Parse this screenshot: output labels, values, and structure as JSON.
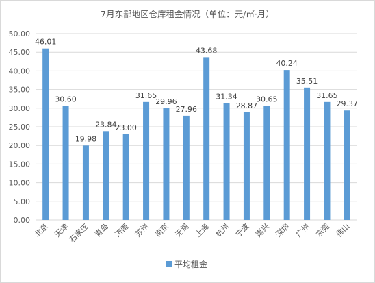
{
  "chart_data": {
    "type": "bar",
    "title": "7月东部地区仓库租金情况（单位：元/㎡·月）",
    "xlabel": "",
    "ylabel": "",
    "categories": [
      "北京",
      "天津",
      "石家庄",
      "青岛",
      "济南",
      "苏州",
      "南京",
      "无锡",
      "上海",
      "杭州",
      "宁波",
      "嘉兴",
      "深圳",
      "广州",
      "东莞",
      "佛山"
    ],
    "series": [
      {
        "name": "平均租金",
        "values": [
          46.01,
          30.6,
          19.98,
          23.84,
          23.0,
          31.65,
          29.96,
          27.96,
          43.68,
          31.34,
          28.87,
          30.65,
          40.24,
          35.51,
          31.65,
          29.37
        ],
        "labels": [
          "46.01",
          "30.60",
          "19.98",
          "23.84",
          "23.00",
          "31.65",
          "29.96",
          "27.96",
          "43.68",
          "31.34",
          "28.87",
          "30.65",
          "40.24",
          "35.51",
          "31.65",
          "29.37"
        ],
        "color": "#5b9bd5"
      }
    ],
    "ylim": [
      0,
      50
    ],
    "yticks": [
      "0.00",
      "5.00",
      "10.00",
      "15.00",
      "20.00",
      "25.00",
      "30.00",
      "35.00",
      "40.00",
      "45.00",
      "50.00"
    ],
    "grid": true,
    "gridColor": "#d9d9d9",
    "legend": "bottom"
  }
}
